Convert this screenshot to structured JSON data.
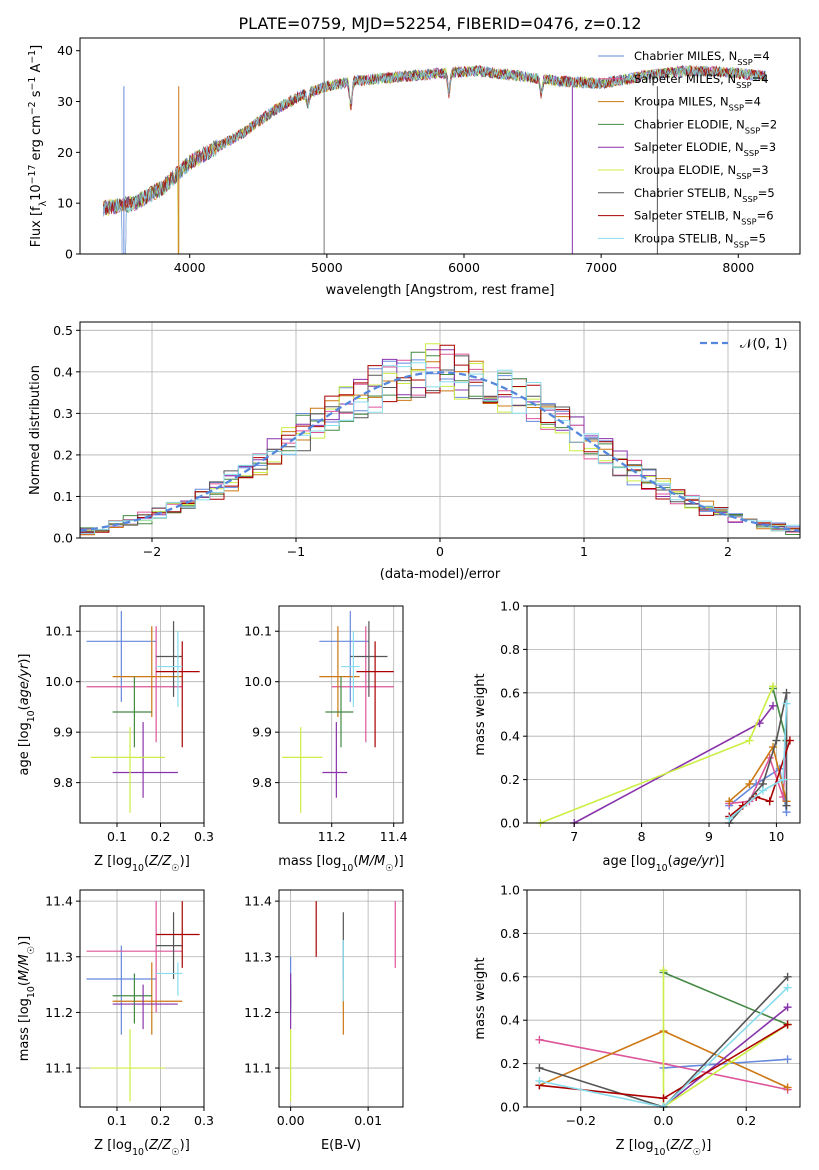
{
  "figure": {
    "title": "PLATE=0759, MJD=52254, FIBERID=0476, z=0.12"
  },
  "chart_data": [
    {
      "id": "spectrum",
      "type": "line",
      "xlabel": "wavelength [Angstrom, rest frame]",
      "ylabel": "Flux [f_λ 10^-17 erg cm^-2 s^-1 A^-1]",
      "xlim": [
        3200,
        8450
      ],
      "ylim": [
        0,
        42.5
      ],
      "xticks": [
        4000,
        5000,
        6000,
        7000,
        8000
      ],
      "yticks": [
        0,
        10,
        20,
        30,
        40
      ],
      "grid": false,
      "legend_position": "top-right",
      "wavelength_range": [
        3370,
        8200
      ],
      "continuum": {
        "x": [
          3370,
          3600,
          3800,
          4000,
          4200,
          4400,
          4600,
          4800,
          5000,
          5200,
          5500,
          5800,
          6100,
          6400,
          6700,
          7000,
          7300,
          7600,
          7900,
          8200
        ],
        "y": [
          9,
          10,
          13,
          18,
          21,
          24,
          28,
          31,
          33,
          34,
          34.8,
          35.5,
          36,
          35,
          34,
          33.5,
          35,
          36,
          35.8,
          35
        ]
      },
      "dips": [
        {
          "x": 5175,
          "depth": 5
        },
        {
          "x": 5890,
          "depth": 4
        },
        {
          "x": 4861,
          "depth": 2
        },
        {
          "x": 6563,
          "depth": 3
        }
      ],
      "vertical_line_x": 4980,
      "drop_edges": [
        3520,
        3920,
        6790,
        7410
      ],
      "series": [
        {
          "name": "Chabrier MILES, N_SSP=4",
          "color": "#6688dd"
        },
        {
          "name": "Salpeter MILES, N_SSP=4",
          "color": "#dd5599"
        },
        {
          "name": "Kroupa MILES, N_SSP=4",
          "color": "#cc7711"
        },
        {
          "name": "Chabrier ELODIE, N_SSP=2",
          "color": "#448844"
        },
        {
          "name": "Salpeter ELODIE, N_SSP=3",
          "color": "#8833aa"
        },
        {
          "name": "Kroupa ELODIE, N_SSP=3",
          "color": "#ccee44"
        },
        {
          "name": "Chabrier STELIB, N_SSP=5",
          "color": "#555555"
        },
        {
          "name": "Salpeter STELIB, N_SSP=6",
          "color": "#aa0000"
        },
        {
          "name": "Kroupa STELIB, N_SSP=5",
          "color": "#88ddee"
        }
      ]
    },
    {
      "id": "residual-hist",
      "type": "line",
      "xlabel": "(data-model)/error",
      "ylabel": "Normed distribution",
      "xlim": [
        -2.5,
        2.5
      ],
      "ylim": [
        0,
        0.52
      ],
      "xticks": [
        -2,
        -1,
        0,
        1,
        2
      ],
      "yticks": [
        0.0,
        0.1,
        0.2,
        0.3,
        0.4,
        0.5
      ],
      "grid": true,
      "legend_position": "top-right",
      "gaussian_label": "𝒩(0, 1)",
      "gaussian_color": "#5588dd",
      "bin_width": 0.1,
      "series_colors": [
        "#6688dd",
        "#dd5599",
        "#cc7711",
        "#448844",
        "#8833aa",
        "#ccee44",
        "#555555",
        "#aa0000",
        "#88ddee"
      ]
    },
    {
      "id": "age-vs-Z",
      "type": "scatter",
      "xlabel": "Z [log10(Z/Z☉)]",
      "ylabel": "age  [log10(age/yr)]",
      "xlim": [
        0.015,
        0.3
      ],
      "ylim": [
        9.72,
        10.15
      ],
      "xticks": [
        0.1,
        0.2,
        0.3
      ],
      "yticks": [
        9.8,
        9.9,
        10.0,
        10.1
      ],
      "grid": true
    },
    {
      "id": "age-vs-mass",
      "type": "scatter",
      "xlabel": "mass [log10(M/M☉)]",
      "ylabel": "",
      "xlim": [
        11.03,
        11.43
      ],
      "ylim": [
        9.72,
        10.15
      ],
      "xticks": [
        11.2,
        11.4
      ],
      "yticks": [
        9.8,
        9.9,
        10.0,
        10.1
      ],
      "grid": true
    },
    {
      "id": "weight-vs-age",
      "type": "line",
      "xlabel": "age  [log10(age/yr)]",
      "ylabel": "mass weight",
      "xlim": [
        6.3,
        10.35
      ],
      "ylim": [
        0,
        1
      ],
      "xticks": [
        7,
        8,
        9,
        10
      ],
      "yticks": [
        0.0,
        0.2,
        0.4,
        0.6,
        0.8,
        1.0
      ],
      "grid": true
    },
    {
      "id": "mass-vs-Z",
      "type": "scatter",
      "xlabel": "Z [log10(Z/Z☉)]",
      "ylabel": "mass [log10(M/M☉)]",
      "xlim": [
        0.015,
        0.3
      ],
      "ylim": [
        11.03,
        11.42
      ],
      "xticks": [
        0.1,
        0.2,
        0.3
      ],
      "yticks": [
        11.1,
        11.2,
        11.3,
        11.4
      ],
      "grid": true
    },
    {
      "id": "mass-vs-ebv",
      "type": "scatter",
      "xlabel": "E(B-V)",
      "ylabel": "",
      "xlim": [
        -0.0015,
        0.0145
      ],
      "ylim": [
        11.03,
        11.42
      ],
      "xticks": [
        0.0,
        0.01
      ],
      "yticks": [
        11.1,
        11.2,
        11.3,
        11.4
      ],
      "grid": true
    },
    {
      "id": "weight-vs-Z",
      "type": "line",
      "xlabel": "Z [log10(Z/Z☉)]",
      "ylabel": "mass weight",
      "xlim": [
        -0.33,
        0.33
      ],
      "ylim": [
        0,
        1
      ],
      "xticks": [
        -0.2,
        0.0,
        0.2
      ],
      "yticks": [
        0.0,
        0.2,
        0.4,
        0.6,
        0.8,
        1.0
      ],
      "grid": true
    }
  ],
  "fits": [
    {
      "color": "#6688dd",
      "age": 10.08,
      "age_lo": 9.96,
      "age_hi": 10.14,
      "Z": 0.11,
      "Z_lo": 0.03,
      "Z_hi": 0.19,
      "mass": 11.26,
      "mass_lo": 11.16,
      "mass_hi": 11.32,
      "ebv": 0.0,
      "ebv_lo": 11.2,
      "ebv_hi": 11.3,
      "w_age": [
        [
          9.3,
          0.08
        ],
        [
          9.7,
          0.18
        ],
        [
          10.05,
          0.25
        ],
        [
          10.15,
          0.05
        ]
      ],
      "w_Z": [
        [
          0.0,
          0.18
        ],
        [
          0.3,
          0.22
        ]
      ]
    },
    {
      "color": "#dd5599",
      "age": 9.99,
      "age_lo": 9.88,
      "age_hi": 10.11,
      "Z": 0.19,
      "Z_lo": 0.03,
      "Z_hi": 0.25,
      "mass": 11.31,
      "mass_lo": 11.2,
      "mass_hi": 11.4,
      "ebv": 0.0135,
      "ebv_lo": 11.28,
      "ebv_hi": 11.4,
      "w_age": [
        [
          9.3,
          0.09
        ],
        [
          9.6,
          0.1
        ],
        [
          9.9,
          0.3
        ],
        [
          10.1,
          0.12
        ],
        [
          10.15,
          0.38
        ]
      ],
      "w_Z": [
        [
          -0.3,
          0.31
        ],
        [
          0.0,
          0.2
        ],
        [
          0.3,
          0.08
        ]
      ]
    },
    {
      "color": "#cc7711",
      "age": 10.01,
      "age_lo": 9.93,
      "age_hi": 10.11,
      "Z": 0.18,
      "Z_lo": 0.09,
      "Z_hi": 0.25,
      "mass": 11.22,
      "mass_lo": 11.16,
      "mass_hi": 11.29,
      "ebv": 0.0068,
      "ebv_lo": 11.16,
      "ebv_hi": 11.26,
      "w_age": [
        [
          9.3,
          0.1
        ],
        [
          9.6,
          0.18
        ],
        [
          9.95,
          0.35
        ],
        [
          10.15,
          0.1
        ]
      ],
      "w_Z": [
        [
          -0.3,
          0.1
        ],
        [
          0.0,
          0.35
        ],
        [
          0.3,
          0.09
        ]
      ]
    },
    {
      "color": "#448844",
      "age": 9.94,
      "age_lo": 9.87,
      "age_hi": 10.01,
      "Z": 0.14,
      "Z_lo": 0.09,
      "Z_hi": 0.18,
      "mass": 11.23,
      "mass_lo": 11.18,
      "mass_hi": 11.27,
      "ebv": 0.0,
      "ebv_lo": 11.21,
      "ebv_hi": 11.25,
      "w_age": [
        [
          9.95,
          0.62
        ],
        [
          10.15,
          0.38
        ]
      ],
      "w_Z": [
        [
          0.0,
          0.62
        ],
        [
          0.3,
          0.38
        ]
      ]
    },
    {
      "color": "#8833aa",
      "age": 9.82,
      "age_lo": 9.77,
      "age_hi": 9.92,
      "Z": 0.16,
      "Z_lo": 0.09,
      "Z_hi": 0.24,
      "mass": 11.215,
      "mass_lo": 11.17,
      "mass_hi": 11.25,
      "ebv": 0.0,
      "ebv_lo": 11.17,
      "ebv_hi": 11.27,
      "w_age": [
        [
          7.0,
          0.0
        ],
        [
          9.75,
          0.46
        ],
        [
          9.95,
          0.54
        ]
      ],
      "w_Z": [
        [
          0.0,
          0.0
        ],
        [
          0.3,
          0.46
        ]
      ]
    },
    {
      "color": "#ccee44",
      "age": 9.85,
      "age_lo": 9.74,
      "age_hi": 9.91,
      "Z": 0.13,
      "Z_lo": 0.04,
      "Z_hi": 0.21,
      "mass": 11.1,
      "mass_lo": 11.04,
      "mass_hi": 11.17,
      "ebv": 0.0,
      "ebv_lo": 11.04,
      "ebv_hi": 11.17,
      "w_age": [
        [
          6.5,
          0.0
        ],
        [
          9.6,
          0.38
        ],
        [
          9.95,
          0.63
        ]
      ],
      "w_Z": [
        [
          0.0,
          0.63
        ],
        [
          0.0,
          0.0
        ],
        [
          0.3,
          0.38
        ]
      ]
    },
    {
      "color": "#555555",
      "age": 10.05,
      "age_lo": 9.97,
      "age_hi": 10.12,
      "Z": 0.23,
      "Z_lo": 0.19,
      "Z_hi": 0.25,
      "mass": 11.32,
      "mass_lo": 11.26,
      "mass_hi": 11.38,
      "ebv": 0.0068,
      "ebv_lo": 11.26,
      "ebv_hi": 11.38,
      "w_age": [
        [
          9.3,
          0.0
        ],
        [
          9.8,
          0.18
        ],
        [
          10.0,
          0.38
        ],
        [
          10.15,
          0.6
        ],
        [
          10.15,
          0.08
        ]
      ],
      "w_Z": [
        [
          -0.3,
          0.18
        ],
        [
          0.0,
          0.0
        ],
        [
          0.3,
          0.6
        ]
      ]
    },
    {
      "color": "#aa0000",
      "age": 10.02,
      "age_lo": 9.87,
      "age_hi": 10.08,
      "Z": 0.25,
      "Z_lo": 0.19,
      "Z_hi": 0.29,
      "mass": 11.34,
      "mass_lo": 11.28,
      "mass_hi": 11.4,
      "ebv": 0.0033,
      "ebv_lo": 11.3,
      "ebv_hi": 11.4,
      "w_age": [
        [
          9.3,
          0.03
        ],
        [
          9.5,
          0.08
        ],
        [
          9.7,
          0.12
        ],
        [
          9.9,
          0.1
        ],
        [
          10.2,
          0.38
        ]
      ],
      "w_Z": [
        [
          -0.3,
          0.1
        ],
        [
          0.0,
          0.04
        ],
        [
          0.3,
          0.38
        ]
      ]
    },
    {
      "color": "#88ddee",
      "age": 10.03,
      "age_lo": 9.95,
      "age_hi": 10.1,
      "Z": 0.24,
      "Z_lo": 0.19,
      "Z_hi": 0.25,
      "mass": 11.27,
      "mass_lo": 11.23,
      "mass_hi": 11.29,
      "ebv": 0.0068,
      "ebv_lo": 11.22,
      "ebv_hi": 11.33,
      "w_age": [
        [
          9.3,
          0.02
        ],
        [
          9.8,
          0.15
        ],
        [
          10.1,
          0.2
        ],
        [
          10.15,
          0.55
        ]
      ],
      "w_Z": [
        [
          -0.3,
          0.12
        ],
        [
          0.0,
          0.0
        ],
        [
          0.3,
          0.55
        ]
      ]
    }
  ]
}
